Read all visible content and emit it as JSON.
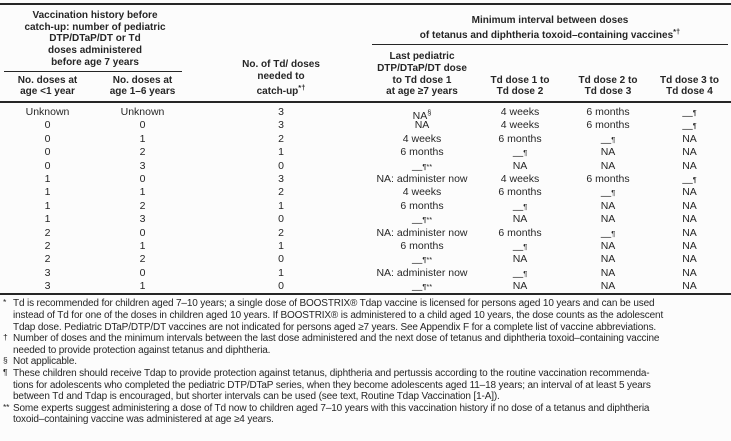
{
  "table": {
    "group_headers": {
      "left": "Vaccination history before\ncatch-up: number of pediatric\nDTP/DTaP/DT or Td\ndoses administered\nbefore age 7 years",
      "right_main": "Minimum interval between doses\nof tetanus and diphtheria toxoid–containing vaccines",
      "right_sup": "*†"
    },
    "columns": [
      {
        "label": "No. doses at\nage <1 year"
      },
      {
        "label": "No. doses at\nage 1–6 years"
      },
      {
        "label": "No. of Td/ doses\nneeded to\ncatch-up",
        "sup": "*†"
      },
      {
        "label": "Last pediatric\nDTP/DTaP/DT dose\nto Td dose 1\nat age ≥7 years"
      },
      {
        "label": "Td dose 1 to\nTd dose 2"
      },
      {
        "label": "Td dose 2 to\nTd dose 3"
      },
      {
        "label": "Td dose 3 to\nTd dose 4"
      }
    ],
    "rows": [
      [
        "Unknown",
        "Unknown",
        "3",
        "NA^{§}",
        "4 weeks",
        "6 months",
        "—^{¶}"
      ],
      [
        "0",
        "0",
        "3",
        "NA",
        "4 weeks",
        "6 months",
        "—^{¶}"
      ],
      [
        "0",
        "1",
        "2",
        "4 weeks",
        "6 months",
        "—^{¶}",
        "NA"
      ],
      [
        "0",
        "2",
        "1",
        "6 months",
        "—^{¶}",
        "NA",
        "NA"
      ],
      [
        "0",
        "3",
        "0",
        "—^{¶**}",
        "NA",
        "NA",
        "NA"
      ],
      [
        "1",
        "0",
        "3",
        "NA: administer now",
        "4 weeks",
        "6 months",
        "—^{¶}"
      ],
      [
        "1",
        "1",
        "2",
        "4 weeks",
        "6 months",
        "—^{¶}",
        "NA"
      ],
      [
        "1",
        "2",
        "1",
        "6 months",
        "—^{¶}",
        "NA",
        "NA"
      ],
      [
        "1",
        "3",
        "0",
        "—^{¶**}",
        "NA",
        "NA",
        "NA"
      ],
      [
        "2",
        "0",
        "2",
        "NA: administer now",
        "6 months",
        "—^{¶}",
        "NA"
      ],
      [
        "2",
        "1",
        "1",
        "6 months",
        "—^{¶}",
        "NA",
        "NA"
      ],
      [
        "2",
        "2",
        "0",
        "—^{¶**}",
        "NA",
        "NA",
        "NA"
      ],
      [
        "3",
        "0",
        "1",
        "NA: administer now",
        "—^{¶}",
        "NA",
        "NA"
      ],
      [
        "3",
        "1",
        "0",
        "—^{¶**}",
        "NA",
        "NA",
        "NA"
      ]
    ]
  },
  "footnotes": [
    {
      "marker": "*",
      "text": "Td is recommended for children aged 7–10 years; a single dose of BOOSTRIX® Tdap vaccine is licensed for persons aged 10 years and can be used\ninstead of Td for one of the doses in children aged 10 years. If BOOSTRIX® is administered to a child aged 10 years, the dose counts as the adolescent\nTdap dose. Pediatric DTaP/DTP/DT vaccines are not indicated for persons aged ≥7 years. See Appendix F for a complete list of vaccine abbreviations."
    },
    {
      "marker": "†",
      "text": "Number of doses and the minimum intervals between the last dose administered and the next dose of tetanus and diphtheria toxoid–containing vaccine\nneeded to provide protection against tetanus and diphtheria."
    },
    {
      "marker": "§",
      "text": "Not applicable."
    },
    {
      "marker": "¶",
      "text": "These children should receive Tdap to provide protection against tetanus, diphtheria and pertussis according to the routine vaccination recommenda-\ntions for adolescents who completed the pediatric DTP/DTaP series, when they become adolescents aged 11–18 years; an interval of at least 5 years\nbetween Td and Tdap is encouraged, but shorter intervals can be used (see text, Routine Tdap Vaccination [1-A])."
    },
    {
      "marker": "**",
      "text": "Some experts suggest administering a dose of Td now to children aged 7–10 years with this vaccination history if no dose of a tetanus and diphtheria\ntoxoid–containing vaccine was administered at age ≥4 years."
    }
  ],
  "colors": {
    "background": "#fcfcfc",
    "text": "#262626",
    "rule": "#262626"
  }
}
